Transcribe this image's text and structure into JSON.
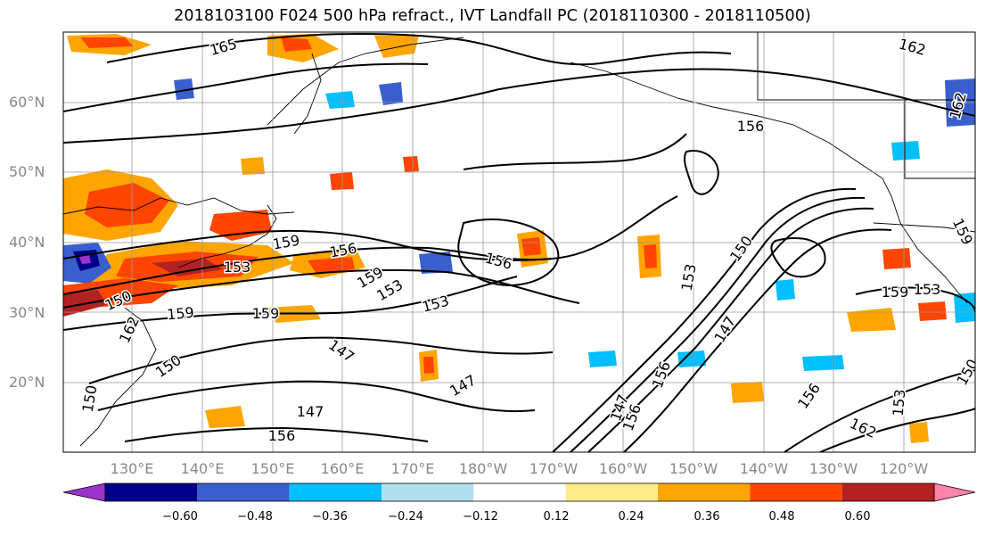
{
  "title": "2018103100 F024 500 hPa refract., IVT Landfall PC (2018110300 - 2018110500)",
  "lat_labels": [
    "60°N",
    "50°N",
    "40°N",
    "30°N",
    "20°N"
  ],
  "lon_labels": [
    "130°E",
    "140°E",
    "150°E",
    "160°E",
    "170°E",
    "180°W",
    "170°W",
    "160°W",
    "150°W",
    "140°W",
    "130°W",
    "120°W"
  ],
  "contour_labels": [
    "165",
    "162",
    "156",
    "162",
    "159",
    "156",
    "153",
    "159",
    "156",
    "153",
    "150",
    "153",
    "159",
    "153",
    "159",
    "150",
    "162",
    "159",
    "147",
    "150",
    "147",
    "147",
    "150",
    "156",
    "147",
    "156",
    "156",
    "153",
    "156",
    "162",
    "159",
    "147",
    "153",
    "150"
  ],
  "colorbar": {
    "ticks": [
      "−0.60",
      "−0.48",
      "−0.36",
      "−0.24",
      "−0.12",
      "0.12",
      "0.24",
      "0.36",
      "0.48",
      "0.60"
    ],
    "colors": [
      "#9a32cd",
      "#00008b",
      "#3a5fcd",
      "#00bfff",
      "#b2dfee",
      "#ffffff",
      "#ffec8b",
      "#ffa500",
      "#ff4500",
      "#b22222",
      "#ff82ab"
    ]
  },
  "colors": {
    "land_outline": "#000000",
    "contour": "#000000",
    "grid": "#999999",
    "axis_label": "#888888"
  }
}
